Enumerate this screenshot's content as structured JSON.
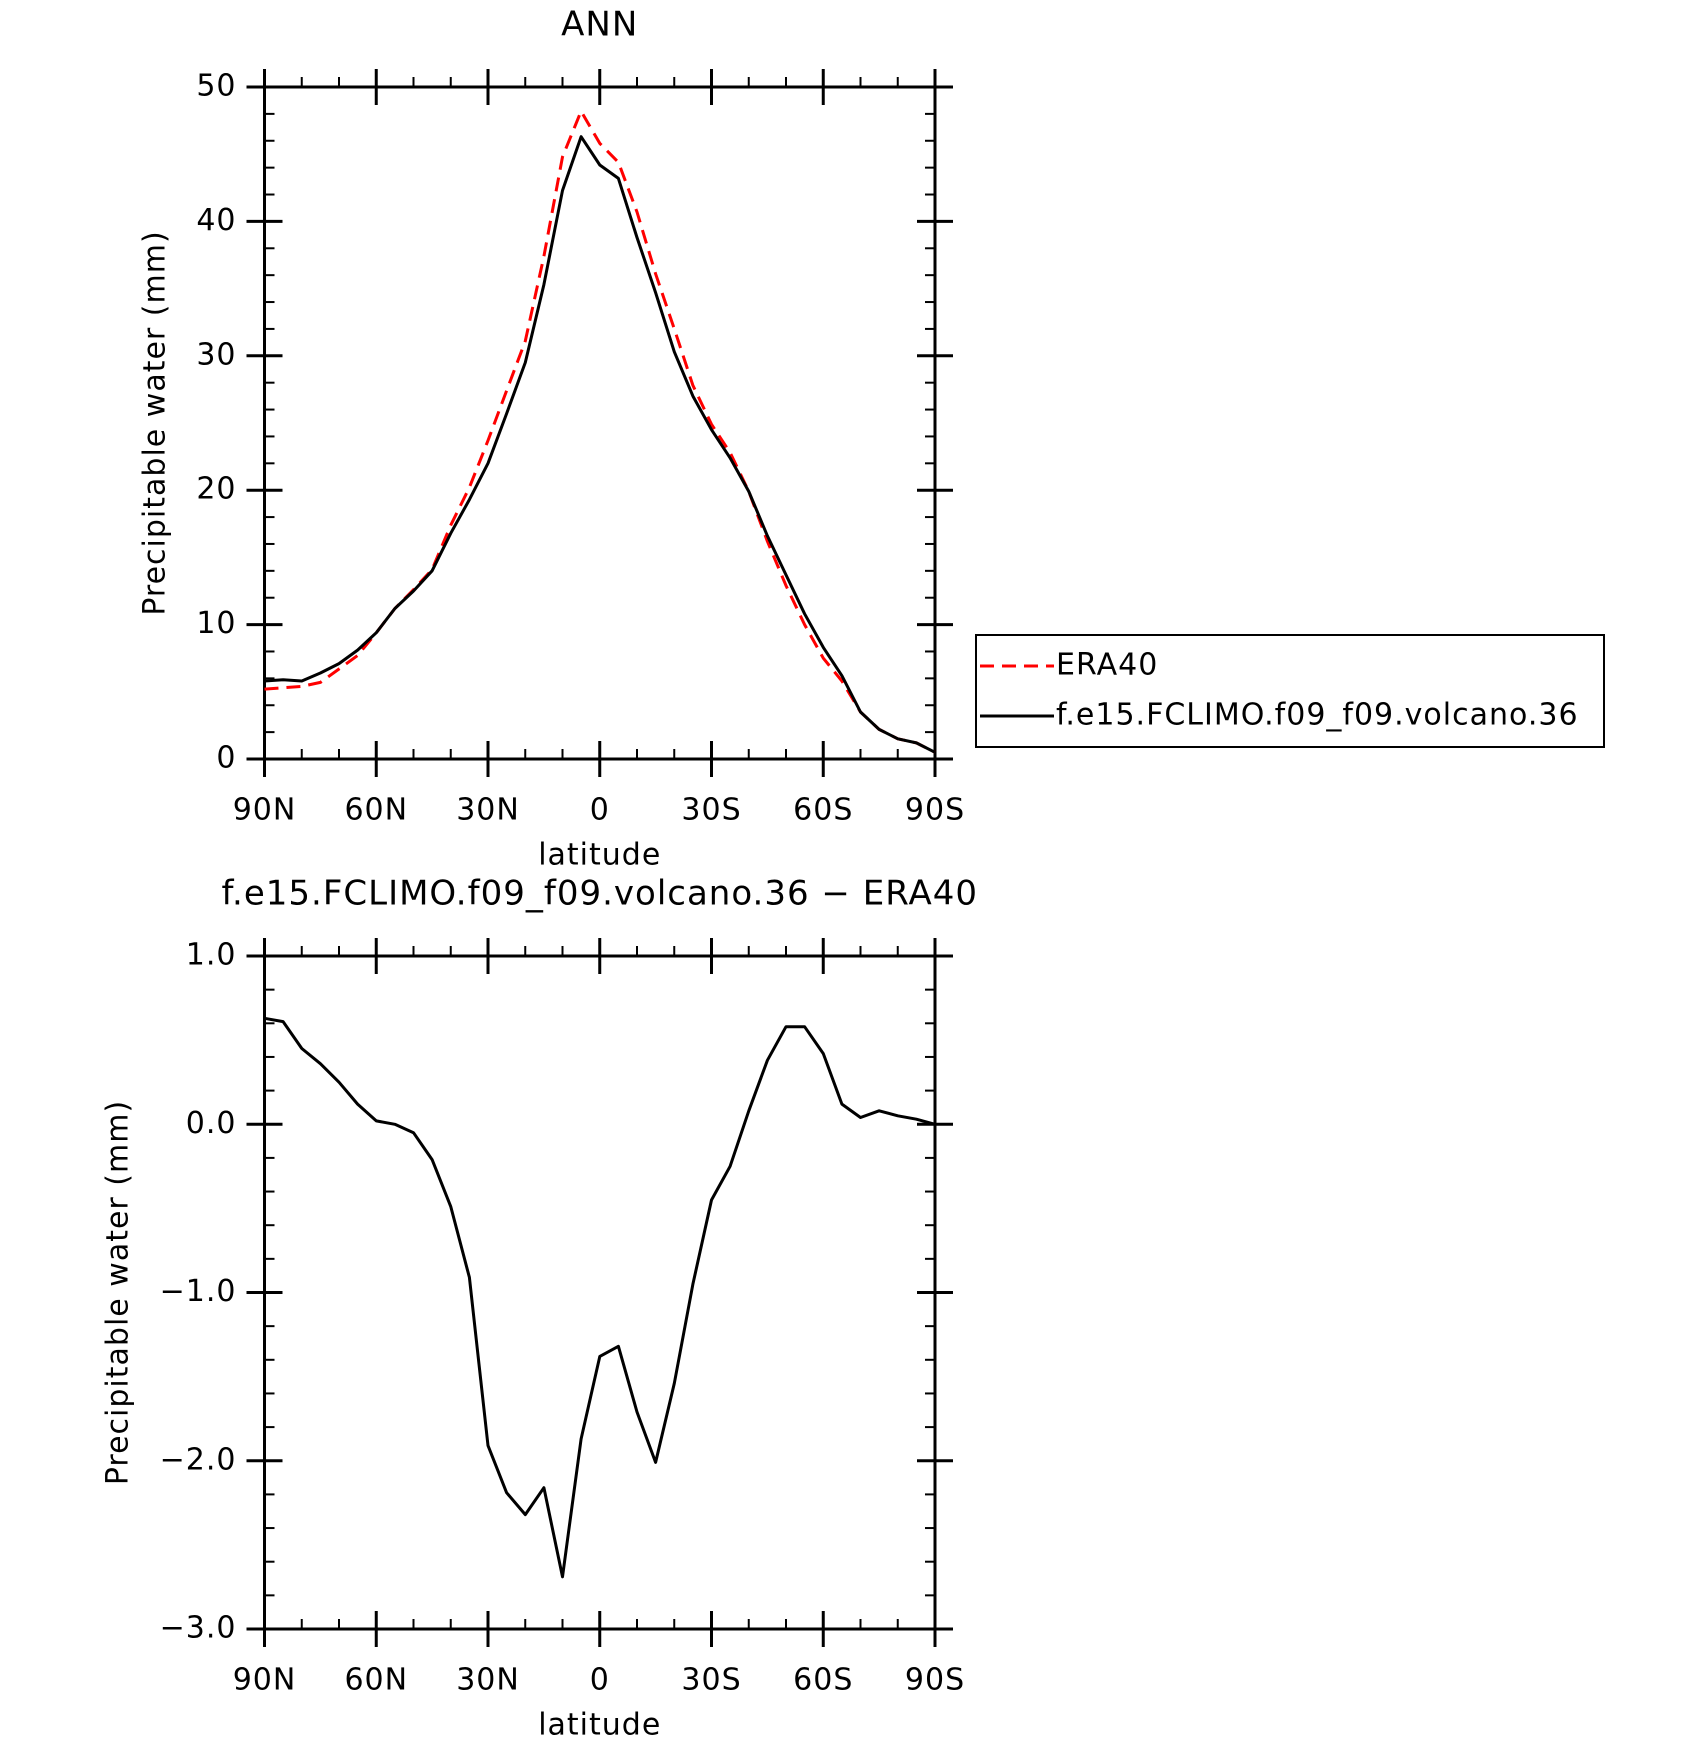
{
  "chart_data": [
    {
      "type": "line",
      "title": "ANN",
      "xlabel": "latitude",
      "ylabel": "Precipitable water (mm)",
      "x": [
        90,
        85,
        80,
        75,
        70,
        65,
        60,
        55,
        50,
        45,
        40,
        35,
        30,
        25,
        20,
        15,
        10,
        5,
        0,
        -5,
        -10,
        -15,
        -20,
        -25,
        -30,
        -35,
        -40,
        -45,
        -50,
        -55,
        -60,
        -65,
        -70,
        -75,
        -80,
        -85,
        -90
      ],
      "xlim": [
        90,
        -90
      ],
      "xticks": [
        {
          "value": 90,
          "label": "90N"
        },
        {
          "value": 60,
          "label": "60N"
        },
        {
          "value": 30,
          "label": "30N"
        },
        0,
        {
          "value": -30,
          "label": "30S"
        },
        {
          "value": -60,
          "label": "60S"
        },
        {
          "value": -90,
          "label": "90S"
        }
      ],
      "xminorticks": [
        80,
        70,
        50,
        40,
        20,
        10,
        -10,
        -20,
        -40,
        -50,
        -70,
        -80
      ],
      "ylim": [
        0,
        50
      ],
      "yticks": [
        0,
        10,
        20,
        30,
        40,
        50
      ],
      "yminorticks": [
        2,
        4,
        6,
        8,
        12,
        14,
        16,
        18,
        22,
        24,
        26,
        28,
        32,
        34,
        36,
        38,
        42,
        44,
        46,
        48
      ],
      "legend": "right",
      "series": [
        {
          "name": "ERA40",
          "color": "#ff0000",
          "line_style": "dashed",
          "values": [
            5.2,
            5.3,
            5.4,
            5.7,
            6.7,
            7.7,
            9.4,
            11.2,
            12.6,
            14.1,
            17.4,
            20.2,
            23.7,
            27.4,
            31.1,
            37.4,
            44.8,
            48.2,
            45.8,
            44.4,
            40.7,
            36.1,
            32.0,
            27.8,
            24.9,
            22.8,
            19.9,
            16.2,
            12.9,
            10.0,
            7.5,
            5.8,
            3.5,
            2.2,
            1.5,
            1.2,
            0.5
          ]
        },
        {
          "name": "f.e15.FCLIMO.f09_f09.volcano.36",
          "color": "#000000",
          "line_style": "solid",
          "values": [
            5.8,
            5.9,
            5.8,
            6.4,
            7.1,
            8.1,
            9.4,
            11.2,
            12.5,
            14.0,
            16.8,
            19.3,
            22.0,
            25.7,
            29.5,
            35.3,
            42.3,
            46.3,
            44.2,
            43.2,
            38.8,
            34.7,
            30.3,
            27.0,
            24.5,
            22.4,
            19.9,
            16.6,
            13.7,
            10.8,
            8.3,
            6.2,
            3.5,
            2.2,
            1.5,
            1.2,
            0.5
          ]
        }
      ]
    },
    {
      "type": "line",
      "title": "f.e15.FCLIMO.f09_f09.volcano.36 − ERA40",
      "xlabel": "latitude",
      "ylabel": "Precipitable water (mm)",
      "x": [
        90,
        85,
        80,
        75,
        70,
        65,
        60,
        55,
        50,
        45,
        40,
        35,
        30,
        25,
        20,
        15,
        10,
        5,
        0,
        -5,
        -10,
        -15,
        -20,
        -25,
        -30,
        -35,
        -40,
        -45,
        -50,
        -55,
        -60,
        -65,
        -70,
        -75,
        -80,
        -85,
        -90
      ],
      "xlim": [
        90,
        -90
      ],
      "xticks": [
        {
          "value": 90,
          "label": "90N"
        },
        {
          "value": 60,
          "label": "60N"
        },
        {
          "value": 30,
          "label": "30N"
        },
        0,
        {
          "value": -30,
          "label": "30S"
        },
        {
          "value": -60,
          "label": "60S"
        },
        {
          "value": -90,
          "label": "90S"
        }
      ],
      "xminorticks": [
        80,
        70,
        50,
        40,
        20,
        10,
        -10,
        -20,
        -40,
        -50,
        -70,
        -80
      ],
      "ylim": [
        -3,
        1
      ],
      "yticks": [
        {
          "value": -3,
          "label": "−3.0"
        },
        {
          "value": -2,
          "label": "−2.0"
        },
        {
          "value": -1,
          "label": "−1.0"
        },
        {
          "value": 0,
          "label": "0.0"
        },
        {
          "value": 1,
          "label": "1.0"
        }
      ],
      "yminorticks": [
        -2.8,
        -2.6,
        -2.4,
        -2.2,
        -1.8,
        -1.6,
        -1.4,
        -1.2,
        -0.8,
        -0.6,
        -0.4,
        -0.2,
        0.2,
        0.4,
        0.6,
        0.8
      ],
      "series": [
        {
          "color": "#000000",
          "line_style": "solid",
          "values": [
            0.63,
            0.61,
            0.45,
            0.36,
            0.25,
            0.12,
            0.02,
            0.0,
            -0.05,
            -0.21,
            -0.49,
            -0.91,
            -1.91,
            -2.19,
            -2.32,
            -2.16,
            -2.69,
            -1.87,
            -1.38,
            -1.32,
            -1.71,
            -2.01,
            -1.54,
            -0.95,
            -0.45,
            -0.25,
            0.08,
            0.38,
            0.58,
            0.58,
            0.42,
            0.12,
            0.04,
            0.08,
            0.05,
            0.03,
            0.0
          ]
        }
      ]
    }
  ]
}
